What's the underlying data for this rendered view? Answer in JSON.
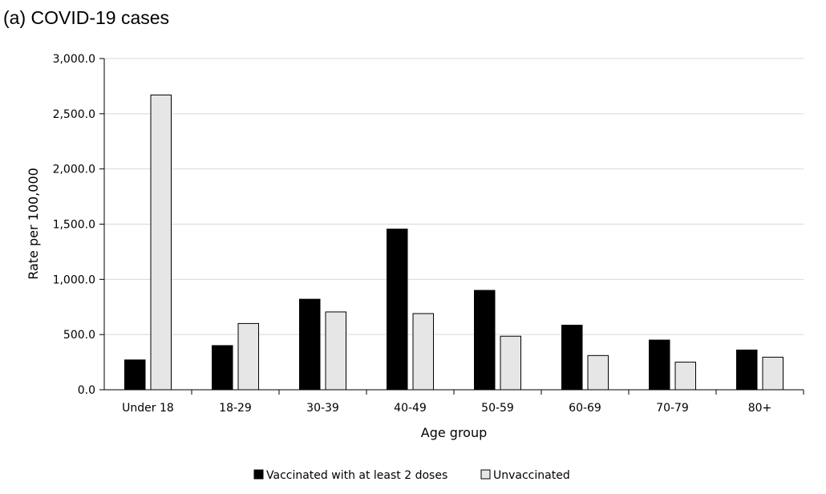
{
  "chart_data": {
    "type": "bar",
    "title": "(a) COVID-19 cases",
    "xlabel": "Age group",
    "ylabel": "Rate per 100,000",
    "ylim": [
      0,
      3000
    ],
    "yticks": [
      "0.0",
      "500.0",
      "1,000.0",
      "1,500.0",
      "2,000.0",
      "2,500.0",
      "3,000.0"
    ],
    "grid": true,
    "legend_position": "bottom",
    "categories": [
      "Under 18",
      "18-29",
      "30-39",
      "40-49",
      "50-59",
      "60-69",
      "70-79",
      "80+"
    ],
    "series": [
      {
        "name": "Vaccinated with at least 2 doses",
        "color": "#000000",
        "values": [
          270,
          400,
          820,
          1455,
          900,
          585,
          450,
          360
        ]
      },
      {
        "name": "Unvaccinated",
        "color": "#e6e6e6",
        "values": [
          2670,
          600,
          705,
          690,
          485,
          310,
          250,
          295
        ]
      }
    ]
  }
}
